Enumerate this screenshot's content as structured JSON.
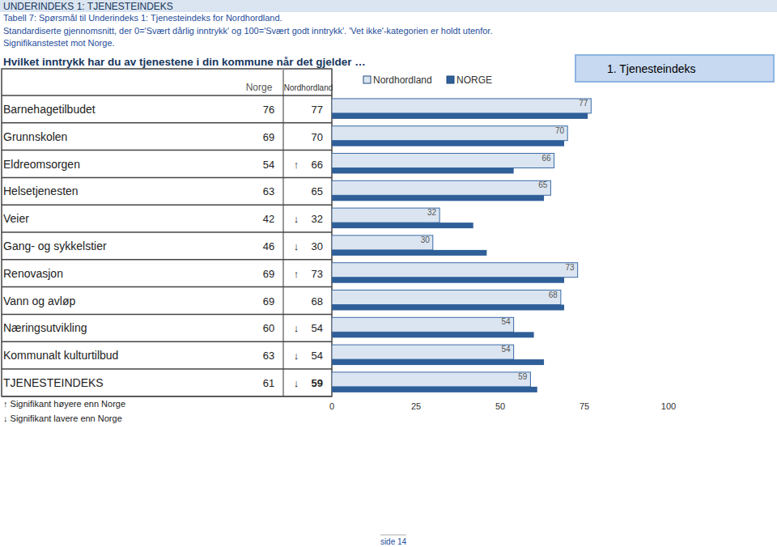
{
  "header": {
    "banner": "UNDERINDEKS 1: TJENESTEINDEKS",
    "lines": [
      "Tabell 7: Spørsmål til Underindeks 1: Tjenesteindeks for Nordhordland.",
      "Standardiserte gjennomsnitt, der 0='Svært dårlig inntrykk' og 100='Svært godt inntrykk'. 'Vet ikke'-kategorien er holdt utenfor.",
      "Signifikanstestet mot Norge."
    ],
    "question": "Hvilket inntrykk har du av tjenestene i din kommune når det gjelder …",
    "box": "1. Tjenesteindeks",
    "page": "side 14"
  },
  "table": {
    "columns": [
      "Norge",
      "Nordhordland"
    ],
    "significance": [
      null,
      null,
      "↑",
      null,
      "↓",
      "↓",
      "↑",
      null,
      "↓",
      "↓",
      "↓"
    ],
    "footnotes": [
      "↑ Signifikant høyere enn Norge",
      "↓ Signifikant lavere enn Norge"
    ]
  },
  "chart_data": {
    "type": "bar",
    "orientation": "horizontal",
    "categories": [
      "Barnehagetilbudet",
      "Grunnskolen",
      "Eldreomsorgen",
      "Helsetjenesten",
      "Veier",
      "Gang- og sykkelstier",
      "Renovasjon",
      "Vann og avløp",
      "Næringsutvikling",
      "Kommunalt kulturtilbud",
      "TJENESTEINDEKS"
    ],
    "series": [
      {
        "name": "Nordhordland",
        "color": "#dbe5f1",
        "data_labels": true,
        "values": [
          77,
          70,
          66,
          65,
          32,
          30,
          73,
          68,
          54,
          54,
          59
        ]
      },
      {
        "name": "NORGE",
        "color": "#2f5f98",
        "data_labels": false,
        "values": [
          76,
          69,
          54,
          63,
          42,
          46,
          69,
          69,
          60,
          63,
          61
        ]
      }
    ],
    "xlim": [
      0,
      100
    ],
    "xticks": [
      0,
      25,
      50,
      75,
      100
    ],
    "grid": false,
    "legend": "top"
  }
}
